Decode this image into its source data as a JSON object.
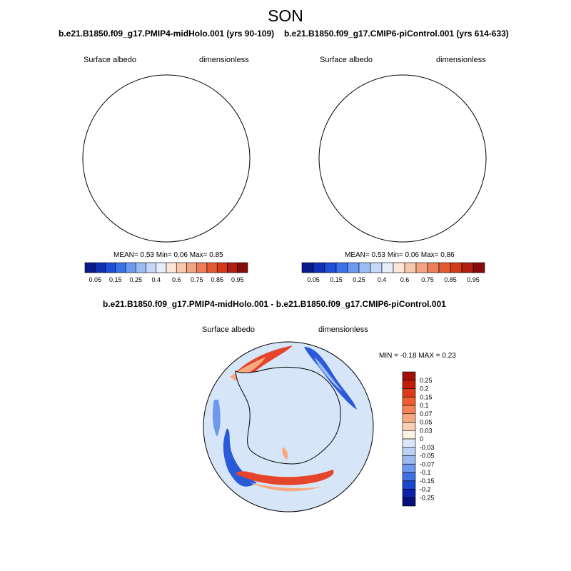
{
  "figure": {
    "season": "SON"
  },
  "panels": [
    {
      "title": "b.e21.B1850.f09_g17.PMIP4-midHolo.001 (yrs 90-109)",
      "variable": "Surface albedo",
      "units": "dimensionless",
      "stats": {
        "mean_label": "MEAN=",
        "mean": "0.53",
        "min_label": "Min=",
        "min": "0.06",
        "max_label": "Max=",
        "max": "0.85"
      }
    },
    {
      "title": "b.e21.B1850.f09_g17.CMIP6-piControl.001 (yrs 614-633)",
      "variable": "Surface albedo",
      "units": "dimensionless",
      "stats": {
        "mean_label": "MEAN=",
        "mean": "0.53",
        "min_label": "Min=",
        "min": "0.06",
        "max_label": "Max=",
        "max": "0.86"
      }
    }
  ],
  "diff": {
    "title": "b.e21.B1850.f09_g17.PMIP4-midHolo.001 - b.e21.B1850.f09_g17.CMIP6-piControl.001",
    "variable": "Surface albedo",
    "units": "dimensionless",
    "stats": {
      "min_label": "MIN =",
      "min": "-0.18",
      "max_label": "MAX =",
      "max": "0.23"
    }
  },
  "colorbar_main": {
    "labels": [
      "0.05",
      "0.15",
      "0.25",
      "0.4",
      "0.6",
      "0.75",
      "0.85",
      "0.95"
    ],
    "colors": [
      "#0a1a8c",
      "#1030b8",
      "#1e4fd8",
      "#3a72e8",
      "#6b9af0",
      "#9cbcf4",
      "#c6d8f8",
      "#e6eefb",
      "#fde6d8",
      "#f8c8ae",
      "#f2a584",
      "#ec7f5a",
      "#e45a32",
      "#d23a1a",
      "#b02010",
      "#850c0a"
    ]
  },
  "colorbar_diff": {
    "labels": [
      "0.25",
      "0.2",
      "0.15",
      "0.1",
      "0.07",
      "0.05",
      "0.03",
      "0",
      "-0.03",
      "-0.05",
      "-0.07",
      "-0.1",
      "-0.15",
      "-0.2",
      "-0.25"
    ],
    "colors": [
      "#a01008",
      "#c01e0a",
      "#dc3a16",
      "#ee5e30",
      "#f48456",
      "#f7aa82",
      "#fad0b4",
      "#fdf0e4",
      "#dce8f8",
      "#bcd2f4",
      "#9cbaf0",
      "#6e98ec",
      "#3f70e4",
      "#1a46cc",
      "#0a24a8",
      "#061078"
    ]
  },
  "colors": {
    "ocean_low": "#1e48c8",
    "ice_high": "#f15a28",
    "diff_background": "#d6e6f8",
    "diff_positive": "#e5452a",
    "diff_negative": "#2a5ad8"
  }
}
